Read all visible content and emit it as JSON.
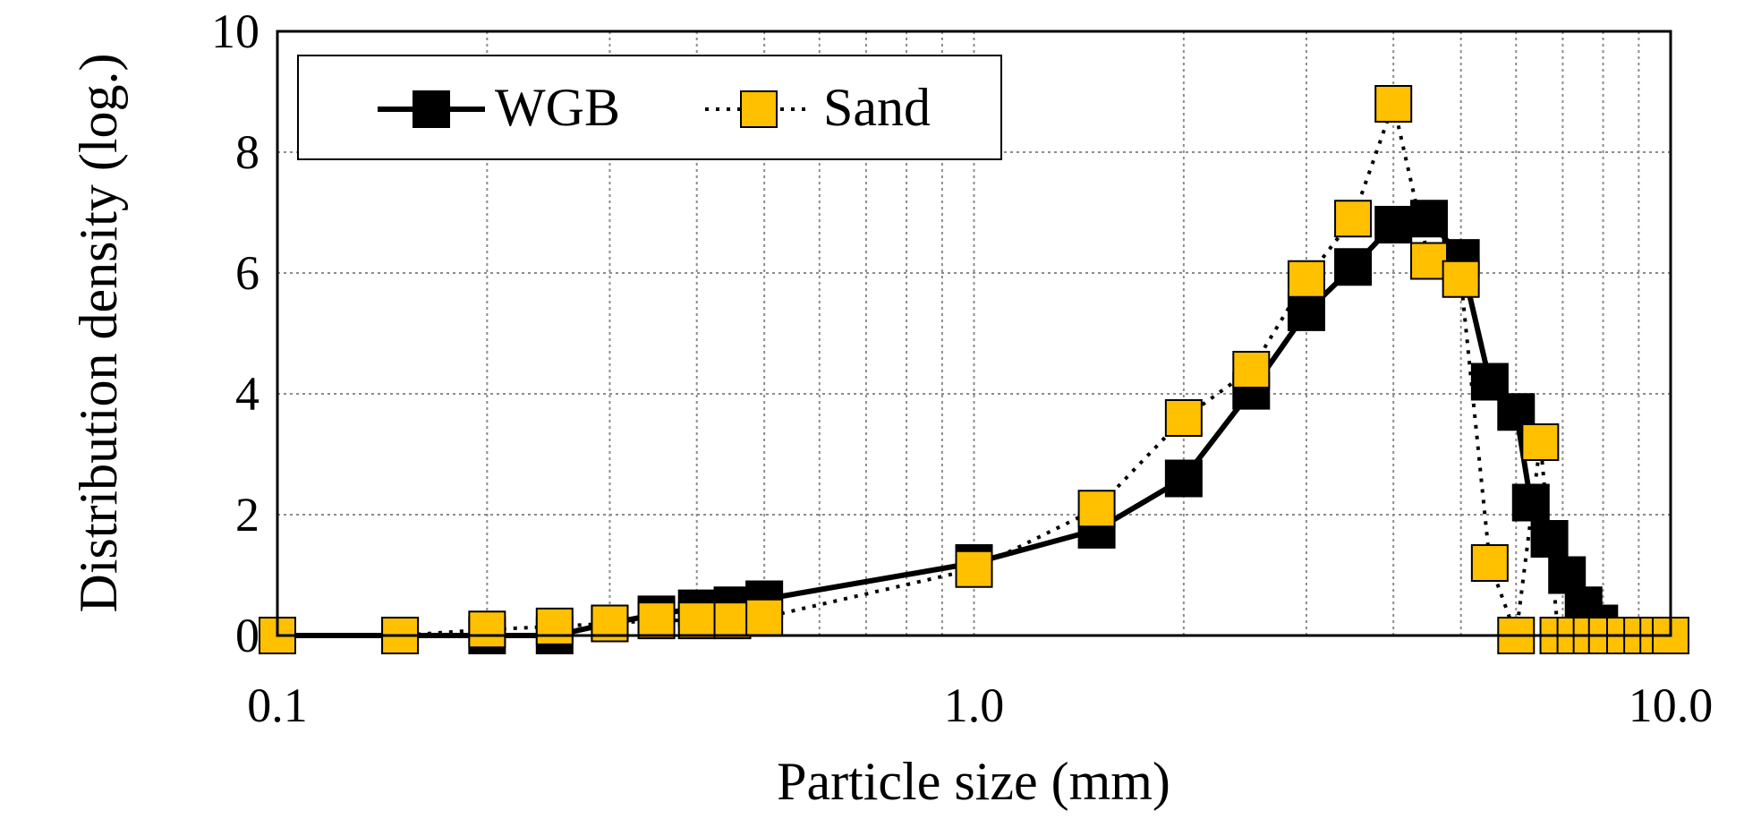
{
  "chart_data": {
    "type": "line",
    "xlabel": "Particle size (mm)",
    "ylabel": "Distribution density (log.)",
    "xscale": "log",
    "xlim": [
      0.1,
      10.0
    ],
    "ylim": [
      0,
      10
    ],
    "xticks": [
      {
        "value": 0.1,
        "label": "0.1"
      },
      {
        "value": 1.0,
        "label": "1.0"
      },
      {
        "value": 10.0,
        "label": "10.0"
      }
    ],
    "yticks": [
      {
        "value": 0,
        "label": "0"
      },
      {
        "value": 2,
        "label": "2"
      },
      {
        "value": 4,
        "label": "4"
      },
      {
        "value": 6,
        "label": "6"
      },
      {
        "value": 8,
        "label": "8"
      },
      {
        "value": 10,
        "label": "10"
      }
    ],
    "grid": true,
    "grid_style": "dotted",
    "legend_position": "top-left",
    "series": [
      {
        "name": "WGB",
        "line_style": "solid",
        "marker_color": "#000000",
        "points": [
          [
            0.1,
            0.0
          ],
          [
            0.15,
            0.0
          ],
          [
            0.2,
            0.0
          ],
          [
            0.25,
            0.0
          ],
          [
            0.3,
            0.2
          ],
          [
            0.35,
            0.35
          ],
          [
            0.4,
            0.45
          ],
          [
            0.45,
            0.5
          ],
          [
            0.5,
            0.6
          ],
          [
            1.0,
            1.2
          ],
          [
            1.5,
            1.75
          ],
          [
            2.0,
            2.6
          ],
          [
            2.5,
            4.05
          ],
          [
            3.0,
            5.35
          ],
          [
            3.5,
            6.1
          ],
          [
            4.0,
            6.8
          ],
          [
            4.5,
            6.9
          ],
          [
            5.0,
            6.25
          ],
          [
            5.5,
            4.2
          ],
          [
            6.0,
            3.7
          ],
          [
            6.3,
            2.2
          ],
          [
            6.7,
            1.6
          ],
          [
            7.1,
            1.0
          ],
          [
            7.5,
            0.5
          ],
          [
            7.9,
            0.2
          ],
          [
            8.4,
            0.0
          ],
          [
            8.9,
            0.0
          ],
          [
            9.4,
            0.0
          ],
          [
            10.0,
            0.0
          ]
        ]
      },
      {
        "name": "Sand",
        "line_style": "dotted",
        "marker_color": "#FFC000",
        "points": [
          [
            0.1,
            0.0
          ],
          [
            0.15,
            0.0
          ],
          [
            0.2,
            0.1
          ],
          [
            0.25,
            0.15
          ],
          [
            0.3,
            0.2
          ],
          [
            0.35,
            0.25
          ],
          [
            0.4,
            0.25
          ],
          [
            0.45,
            0.25
          ],
          [
            0.5,
            0.3
          ],
          [
            1.0,
            1.1
          ],
          [
            1.5,
            2.1
          ],
          [
            2.0,
            3.6
          ],
          [
            2.5,
            4.4
          ],
          [
            3.0,
            5.9
          ],
          [
            3.5,
            6.9
          ],
          [
            4.0,
            8.8
          ],
          [
            4.5,
            6.2
          ],
          [
            5.0,
            5.9
          ],
          [
            5.5,
            1.2
          ],
          [
            6.0,
            0.0
          ],
          [
            6.5,
            3.2
          ],
          [
            6.9,
            0.0
          ],
          [
            7.3,
            0.0
          ],
          [
            7.7,
            0.0
          ],
          [
            8.1,
            0.0
          ],
          [
            8.6,
            0.0
          ],
          [
            9.1,
            0.0
          ],
          [
            9.6,
            0.0
          ],
          [
            10.0,
            0.0
          ]
        ]
      }
    ]
  }
}
